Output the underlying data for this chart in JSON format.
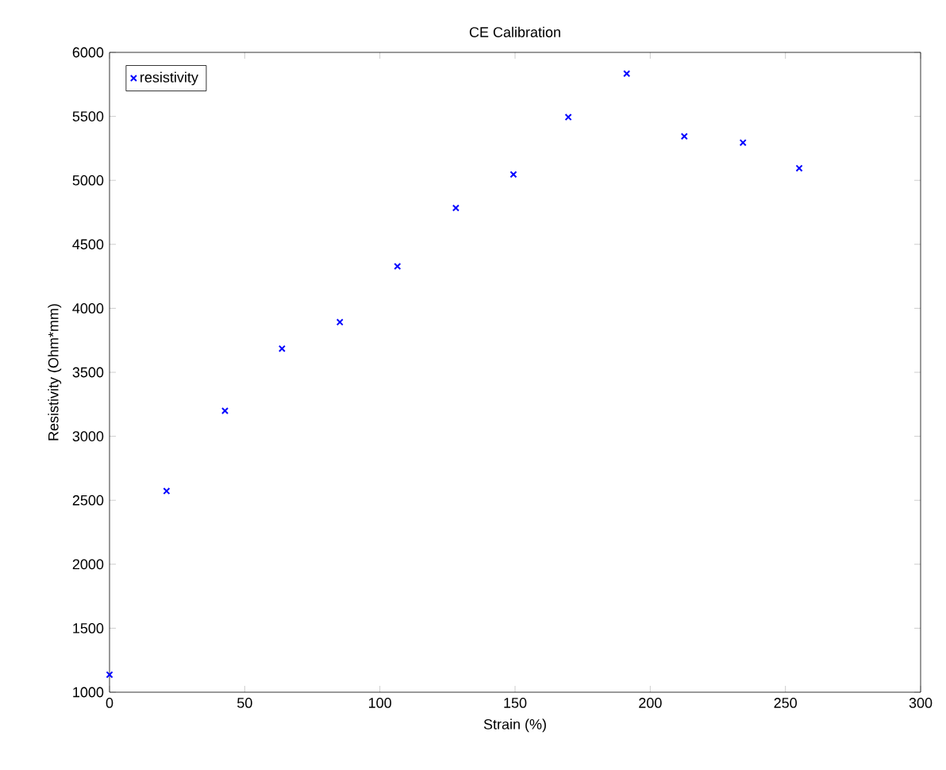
{
  "chart_data": {
    "type": "scatter",
    "title": "CE Calibration",
    "xlabel": "Strain (%)",
    "ylabel": "Resistivity (Ohm*mm)",
    "x": [
      0,
      21.1,
      42.7,
      63.8,
      85.2,
      106.5,
      128.1,
      149.4,
      169.7,
      191.3,
      212.6,
      234.3,
      255.1
    ],
    "series": [
      {
        "name": "resistivity",
        "color": "#0000ff",
        "values": [
          1137,
          2572,
          3199,
          3685,
          3892,
          4328,
          4784,
          5046,
          5494,
          5834,
          5344,
          5295,
          5095
        ]
      }
    ],
    "xlim": [
      0,
      300
    ],
    "xticks": [
      0,
      50,
      100,
      150,
      200,
      250,
      300
    ],
    "ylim": [
      1000,
      6000
    ],
    "yticks": [
      1000,
      1500,
      2000,
      2500,
      3000,
      3500,
      4000,
      4500,
      5000,
      5500,
      6000
    ],
    "grid": false,
    "legend": "top left",
    "marker": "cross"
  }
}
